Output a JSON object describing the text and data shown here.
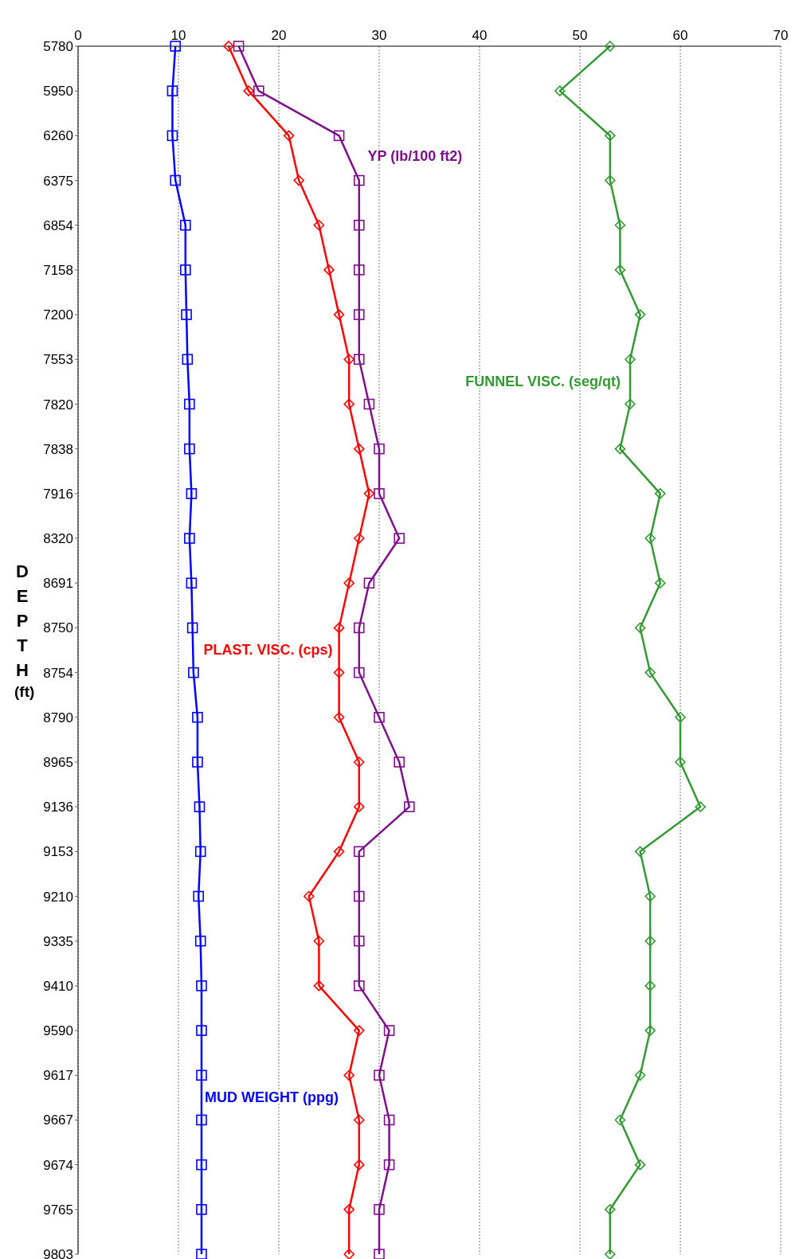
{
  "chart_data": {
    "type": "line",
    "orientation": "horizontal",
    "ylabel": "DEPTH (ft)",
    "categories": [
      "5780",
      "5950",
      "6260",
      "6375",
      "6854",
      "7158",
      "7200",
      "7553",
      "7820",
      "7838",
      "7916",
      "8320",
      "8691",
      "8750",
      "8754",
      "8790",
      "8965",
      "9136",
      "9153",
      "9210",
      "9335",
      "9410",
      "9590",
      "9617",
      "9667",
      "9674",
      "9765",
      "9803"
    ],
    "xlim": [
      0,
      70
    ],
    "xticks": [
      0,
      10,
      20,
      30,
      40,
      50,
      60,
      70
    ],
    "grid": "x",
    "legend": false,
    "series": [
      {
        "name": "MUD WEIGHT  (ppg)",
        "color": "#0000ff",
        "marker": "square",
        "values": [
          9.7,
          9.4,
          9.4,
          9.7,
          10.7,
          10.7,
          10.8,
          10.9,
          11.1,
          11.1,
          11.3,
          11.1,
          11.3,
          11.4,
          11.5,
          11.9,
          11.9,
          12.1,
          12.2,
          12.0,
          12.2,
          12.3,
          12.3,
          12.3,
          12.3,
          12.3,
          12.3,
          12.3
        ]
      },
      {
        "name": "PLAST. VISC. (cps)",
        "color": "#ff0000",
        "marker": "diamond",
        "values": [
          15,
          17,
          21,
          22,
          24,
          25,
          26,
          27,
          27,
          28,
          29,
          28,
          27,
          26,
          26,
          26,
          28,
          28,
          26,
          23,
          24,
          24,
          28,
          27,
          28,
          28,
          27,
          27
        ]
      },
      {
        "name": "YP (lb/100 ft2)",
        "color": "#7f0f8c",
        "marker": "square",
        "values": [
          16,
          18,
          26,
          28,
          28,
          28,
          28,
          28,
          29,
          30,
          30,
          32,
          29,
          28,
          28,
          30,
          32,
          33,
          28,
          28,
          28,
          28,
          31,
          30,
          31,
          31,
          30,
          30
        ]
      },
      {
        "name": "FUNNEL VISC. (seg/qt)",
        "color": "#339933",
        "marker": "diamond",
        "values": [
          53,
          48,
          53,
          53,
          54,
          54,
          56,
          55,
          55,
          54,
          58,
          57,
          58,
          56,
          57,
          60,
          60,
          62,
          56,
          57,
          57,
          57,
          57,
          56,
          54,
          56,
          53,
          53
        ]
      }
    ]
  }
}
